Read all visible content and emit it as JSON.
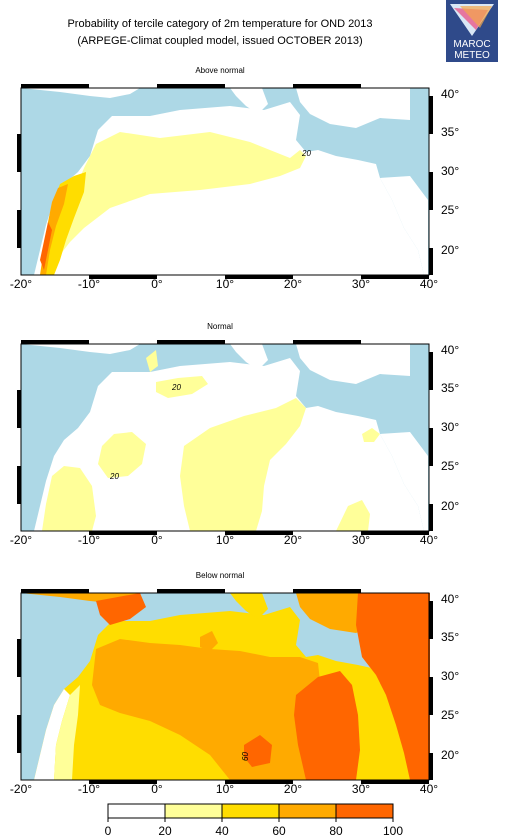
{
  "header": {
    "line1": "Probability of tercile category of 2m temperature for OND 2013",
    "line2": "(ARPEGE-Climat coupled model, issued OCTOBER 2013)"
  },
  "logo": {
    "word1": "MAROC",
    "word2": "METEO",
    "icon": "maroc-meteo-logo"
  },
  "panels": [
    {
      "title": "Above normal",
      "contour_labels": [
        "20"
      ]
    },
    {
      "title": "Normal",
      "contour_labels": [
        "20",
        "20"
      ]
    },
    {
      "title": "Below normal",
      "contour_labels": [
        "60"
      ]
    }
  ],
  "axes": {
    "lon_ticks": [
      "-20°",
      "-10°",
      "0°",
      "10°",
      "20°",
      "30°",
      "40°"
    ],
    "lat_ticks": [
      "40°",
      "35°",
      "30°",
      "25°",
      "20°"
    ]
  },
  "legend": {
    "ticks": [
      "0",
      "20",
      "40",
      "60",
      "80",
      "100"
    ],
    "colors": [
      "#ffffff",
      "#ffff99",
      "#ffdd00",
      "#ffaa00",
      "#ff6600"
    ]
  },
  "colors": {
    "sea": "#add8e6",
    "land": "#ffffff"
  }
}
